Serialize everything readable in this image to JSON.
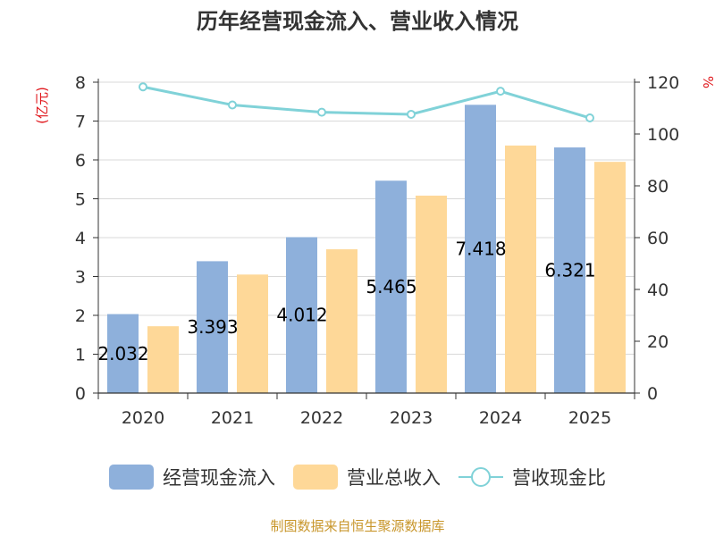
{
  "title": "历年经营现金流入、营业收入情况",
  "source_note": "制图数据来自恒生聚源数据库",
  "colors": {
    "cash_inflow": "#8eb0db",
    "revenue": "#fed898",
    "ratio_line": "#80d2d8",
    "axis": "#333333",
    "grid": "#d9d9d9",
    "unit": "#e0161b"
  },
  "chart_data": {
    "type": "bar",
    "title": "历年经营现金流入、营业收入情况",
    "categories": [
      "2020",
      "2021",
      "2022",
      "2023",
      "2024",
      "2025"
    ],
    "y_left": {
      "unit": "(亿元)",
      "ylim": [
        0,
        8
      ],
      "ticks": [
        "0",
        "1",
        "2",
        "3",
        "4",
        "5",
        "6",
        "7",
        "8"
      ]
    },
    "y_right": {
      "unit": "%",
      "ylim": [
        0,
        120
      ],
      "ticks": [
        "0",
        "20",
        "40",
        "60",
        "80",
        "100",
        "120"
      ]
    },
    "grid": true,
    "legend_position": "bottom",
    "series": [
      {
        "name": "经营现金流入",
        "type": "bar",
        "axis": "left",
        "values": [
          2.032,
          3.393,
          4.012,
          5.465,
          7.418,
          6.321
        ],
        "labels": [
          "2.032",
          "3.393",
          "4.012",
          "5.465",
          "7.418",
          "6.321"
        ]
      },
      {
        "name": "营业总收入",
        "type": "bar",
        "axis": "left",
        "values": [
          1.72,
          3.05,
          3.7,
          5.08,
          6.37,
          5.95
        ]
      },
      {
        "name": "营收现金比",
        "type": "line",
        "axis": "right",
        "values": [
          118.2,
          111.2,
          108.4,
          107.6,
          116.5,
          106.2
        ]
      }
    ]
  }
}
